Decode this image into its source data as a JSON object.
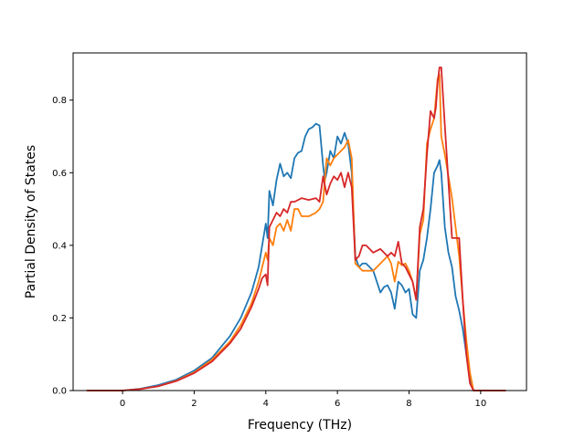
{
  "chart_data": {
    "type": "line",
    "title": "",
    "xlabel": "Frequency (THz)",
    "ylabel": "Partial Density of States",
    "xlim": [
      -1.38,
      11.28
    ],
    "ylim": [
      0.0,
      0.93
    ],
    "xticks": [
      0,
      2,
      4,
      6,
      8,
      10
    ],
    "xtick_labels": [
      "0",
      "2",
      "4",
      "6",
      "8",
      "10"
    ],
    "yticks": [
      0.0,
      0.2,
      0.4,
      0.6,
      0.8
    ],
    "ytick_labels": [
      "0.0",
      "0.2",
      "0.4",
      "0.6",
      "0.8"
    ],
    "grid": false,
    "legend": null,
    "series": [
      {
        "color": "#1f77b4",
        "x": [
          -1.0,
          0.0,
          0.5,
          1.0,
          1.5,
          2.0,
          2.5,
          3.0,
          3.3,
          3.6,
          3.8,
          3.9,
          4.0,
          4.05,
          4.1,
          4.2,
          4.3,
          4.4,
          4.5,
          4.6,
          4.7,
          4.8,
          4.9,
          5.0,
          5.1,
          5.2,
          5.3,
          5.4,
          5.5,
          5.6,
          5.65,
          5.7,
          5.8,
          5.9,
          6.0,
          6.1,
          6.2,
          6.3,
          6.4,
          6.5,
          6.6,
          6.7,
          6.8,
          7.0,
          7.1,
          7.2,
          7.3,
          7.4,
          7.5,
          7.6,
          7.7,
          7.8,
          7.9,
          8.0,
          8.1,
          8.2,
          8.3,
          8.4,
          8.5,
          8.6,
          8.7,
          8.8,
          8.85,
          8.9,
          9.0,
          9.1,
          9.2,
          9.3,
          9.4,
          9.5,
          9.6,
          9.7,
          9.8,
          10.0,
          10.7
        ],
        "y": [
          0.0,
          0.0,
          0.005,
          0.015,
          0.03,
          0.055,
          0.09,
          0.15,
          0.2,
          0.27,
          0.34,
          0.4,
          0.46,
          0.42,
          0.55,
          0.51,
          0.58,
          0.625,
          0.59,
          0.6,
          0.585,
          0.64,
          0.655,
          0.66,
          0.7,
          0.72,
          0.725,
          0.735,
          0.73,
          0.62,
          0.58,
          0.6,
          0.66,
          0.64,
          0.7,
          0.68,
          0.71,
          0.68,
          0.6,
          0.37,
          0.34,
          0.35,
          0.35,
          0.33,
          0.3,
          0.27,
          0.285,
          0.29,
          0.27,
          0.225,
          0.3,
          0.29,
          0.27,
          0.28,
          0.21,
          0.2,
          0.33,
          0.36,
          0.42,
          0.5,
          0.6,
          0.62,
          0.635,
          0.6,
          0.45,
          0.38,
          0.34,
          0.26,
          0.22,
          0.17,
          0.1,
          0.03,
          0.0,
          0.0,
          0.0
        ]
      },
      {
        "color": "#ff7f0e",
        "x": [
          -1.0,
          0.0,
          0.5,
          1.0,
          1.5,
          2.0,
          2.5,
          3.0,
          3.3,
          3.6,
          3.8,
          4.0,
          4.05,
          4.1,
          4.2,
          4.3,
          4.4,
          4.5,
          4.6,
          4.7,
          4.8,
          4.9,
          5.0,
          5.2,
          5.4,
          5.5,
          5.6,
          5.7,
          5.8,
          5.9,
          6.0,
          6.1,
          6.2,
          6.3,
          6.4,
          6.5,
          6.7,
          7.0,
          7.2,
          7.4,
          7.5,
          7.6,
          7.7,
          7.8,
          7.9,
          8.0,
          8.1,
          8.2,
          8.3,
          8.4,
          8.5,
          8.6,
          8.7,
          8.8,
          8.85,
          8.9,
          9.0,
          9.2,
          9.4,
          9.5,
          9.6,
          9.7,
          9.8,
          10.0,
          10.7
        ],
        "y": [
          0.0,
          0.0,
          0.004,
          0.012,
          0.027,
          0.05,
          0.085,
          0.135,
          0.18,
          0.24,
          0.3,
          0.38,
          0.36,
          0.42,
          0.4,
          0.45,
          0.46,
          0.44,
          0.47,
          0.44,
          0.5,
          0.5,
          0.48,
          0.48,
          0.49,
          0.5,
          0.52,
          0.64,
          0.62,
          0.64,
          0.65,
          0.66,
          0.67,
          0.69,
          0.64,
          0.35,
          0.33,
          0.33,
          0.35,
          0.37,
          0.35,
          0.3,
          0.355,
          0.345,
          0.35,
          0.33,
          0.3,
          0.25,
          0.43,
          0.47,
          0.68,
          0.72,
          0.75,
          0.86,
          0.87,
          0.7,
          0.65,
          0.53,
          0.37,
          0.25,
          0.14,
          0.05,
          0.0,
          0.0,
          0.0
        ]
      },
      {
        "color": "#d62728",
        "x": [
          -1.0,
          0.0,
          0.5,
          1.0,
          1.5,
          2.0,
          2.5,
          3.0,
          3.3,
          3.6,
          3.8,
          3.9,
          4.0,
          4.05,
          4.1,
          4.2,
          4.3,
          4.4,
          4.5,
          4.6,
          4.7,
          4.8,
          5.0,
          5.2,
          5.4,
          5.5,
          5.6,
          5.7,
          5.8,
          5.9,
          6.0,
          6.1,
          6.2,
          6.3,
          6.4,
          6.5,
          6.6,
          6.7,
          6.8,
          7.0,
          7.2,
          7.4,
          7.5,
          7.6,
          7.7,
          7.8,
          7.9,
          8.0,
          8.1,
          8.2,
          8.3,
          8.4,
          8.5,
          8.6,
          8.7,
          8.75,
          8.8,
          8.85,
          8.9,
          9.0,
          9.2,
          9.4,
          9.5,
          9.6,
          9.7,
          9.8,
          10.0,
          10.7
        ],
        "y": [
          0.0,
          0.0,
          0.004,
          0.012,
          0.026,
          0.048,
          0.08,
          0.13,
          0.17,
          0.23,
          0.28,
          0.31,
          0.32,
          0.29,
          0.45,
          0.47,
          0.49,
          0.48,
          0.5,
          0.49,
          0.52,
          0.52,
          0.53,
          0.525,
          0.53,
          0.52,
          0.59,
          0.54,
          0.57,
          0.59,
          0.58,
          0.6,
          0.56,
          0.6,
          0.56,
          0.36,
          0.37,
          0.4,
          0.4,
          0.38,
          0.39,
          0.37,
          0.38,
          0.37,
          0.41,
          0.35,
          0.34,
          0.32,
          0.3,
          0.25,
          0.45,
          0.5,
          0.65,
          0.77,
          0.75,
          0.78,
          0.85,
          0.89,
          0.89,
          0.73,
          0.42,
          0.42,
          0.25,
          0.1,
          0.02,
          0.0,
          0.0,
          0.0
        ]
      }
    ]
  }
}
